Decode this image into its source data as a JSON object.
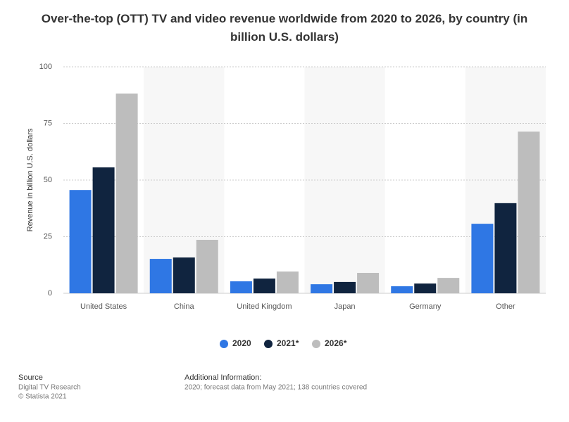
{
  "chart_data": {
    "type": "bar",
    "title": "Over-the-top (OTT) TV and video revenue worldwide from 2020 to 2026, by country (in billion U.S. dollars)",
    "y_label": "Revenue in billion U.S. dollars",
    "categories": [
      "United States",
      "China",
      "United Kingdom",
      "Japan",
      "Germany",
      "Other"
    ],
    "series": [
      {
        "name": "2020",
        "color": "#2f77e4",
        "values": [
          45.6,
          15.2,
          5.3,
          4.0,
          3.1,
          30.7
        ]
      },
      {
        "name": "2021*",
        "color": "#10243f",
        "values": [
          55.6,
          15.8,
          6.5,
          5.0,
          4.3,
          39.8
        ]
      },
      {
        "name": "2026*",
        "color": "#bdbdbd",
        "values": [
          88.2,
          23.6,
          9.6,
          9.0,
          6.8,
          71.4
        ]
      }
    ],
    "ylim": [
      0,
      100
    ],
    "yticks": [
      0,
      25,
      50,
      75,
      100
    ],
    "grid": true
  },
  "footer": {
    "source_heading": "Source",
    "source": "Digital TV Research",
    "copyright": "© Statista 2021",
    "info_heading": "Additional Information:",
    "info": "2020; forecast data from May 2021; 138 countries covered"
  }
}
